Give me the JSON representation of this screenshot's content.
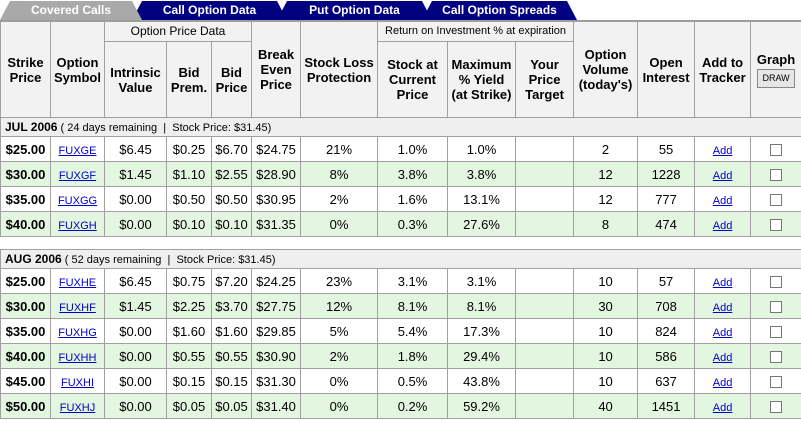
{
  "tabs": [
    "Covered Calls",
    "Call Option Data",
    "Put Option Data",
    "Call Option Spreads"
  ],
  "header": {
    "groups": [
      "Option Price Data",
      "Return on Investment % at expiration"
    ],
    "columns": [
      "Strike Price",
      "Option Symbol",
      "Intrinsic Value",
      "Bid Prem.",
      "Bid Price",
      "Break Even Price",
      "Stock Loss Protection",
      "Stock at Current Price",
      "Maximum % Yield (at Strike)",
      "Your Price Target",
      "Option Volume (today's)",
      "Open Interest",
      "Add to Tracker",
      "Graph"
    ],
    "graph_button": "DRAW"
  },
  "sections": [
    {
      "month": "JUL 2006",
      "info": "( 24 days remaining  |  Stock Price: $31.45)",
      "rows": [
        [
          "$25.00",
          "FUXGE",
          "$6.45",
          "$0.25",
          "$6.70",
          "$24.75",
          "21%",
          "1.0%",
          "1.0%",
          "2",
          "55",
          "Add"
        ],
        [
          "$30.00",
          "FUXGF",
          "$1.45",
          "$1.10",
          "$2.55",
          "$28.90",
          "8%",
          "3.8%",
          "3.8%",
          "12",
          "1228",
          "Add"
        ],
        [
          "$35.00",
          "FUXGG",
          "$0.00",
          "$0.50",
          "$0.50",
          "$30.95",
          "2%",
          "1.6%",
          "13.1%",
          "12",
          "777",
          "Add"
        ],
        [
          "$40.00",
          "FUXGH",
          "$0.00",
          "$0.10",
          "$0.10",
          "$31.35",
          "0%",
          "0.3%",
          "27.6%",
          "8",
          "474",
          "Add"
        ]
      ]
    },
    {
      "month": "AUG 2006",
      "info": "( 52 days remaining  |  Stock Price: $31.45)",
      "rows": [
        [
          "$25.00",
          "FUXHE",
          "$6.45",
          "$0.75",
          "$7.20",
          "$24.25",
          "23%",
          "3.1%",
          "3.1%",
          "10",
          "57",
          "Add"
        ],
        [
          "$30.00",
          "FUXHF",
          "$1.45",
          "$2.25",
          "$3.70",
          "$27.75",
          "12%",
          "8.1%",
          "8.1%",
          "30",
          "708",
          "Add"
        ],
        [
          "$35.00",
          "FUXHG",
          "$0.00",
          "$1.60",
          "$1.60",
          "$29.85",
          "5%",
          "5.4%",
          "17.3%",
          "10",
          "824",
          "Add"
        ],
        [
          "$40.00",
          "FUXHH",
          "$0.00",
          "$0.55",
          "$0.55",
          "$30.90",
          "2%",
          "1.8%",
          "29.4%",
          "10",
          "586",
          "Add"
        ],
        [
          "$45.00",
          "FUXHI",
          "$0.00",
          "$0.15",
          "$0.15",
          "$31.30",
          "0%",
          "0.5%",
          "43.8%",
          "10",
          "637",
          "Add"
        ],
        [
          "$50.00",
          "FUXHJ",
          "$0.00",
          "$0.05",
          "$0.05",
          "$31.40",
          "0%",
          "0.2%",
          "59.2%",
          "40",
          "1451",
          "Add"
        ]
      ]
    }
  ]
}
